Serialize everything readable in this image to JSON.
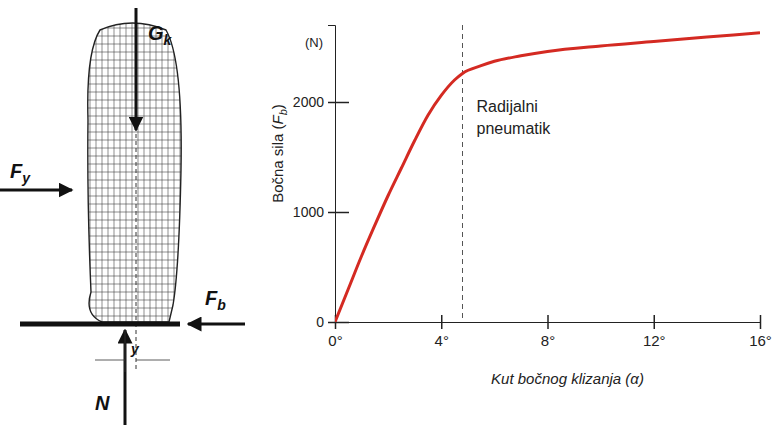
{
  "chart_data": {
    "type": "line",
    "ylabel": "Bočna sila (Fb)",
    "y_unit": "(N)",
    "xlabel": "Kut bočnog klizanja (α)",
    "annotation": "Radijalni pneumatik",
    "vline": 4.8,
    "x": [
      0,
      0.5,
      1,
      1.5,
      2,
      2.5,
      3,
      3.5,
      4,
      4.5,
      4.8,
      5.5,
      6,
      7,
      8,
      10,
      12,
      14,
      16
    ],
    "values": [
      0,
      300,
      600,
      880,
      1150,
      1400,
      1650,
      1880,
      2060,
      2200,
      2260,
      2330,
      2370,
      2420,
      2460,
      2510,
      2550,
      2590,
      2630
    ],
    "color": "#d42a22",
    "xlim": [
      0,
      16
    ],
    "ylim": [
      0,
      2700
    ],
    "xticks": [
      {
        "value": 0,
        "label": "0°"
      },
      {
        "value": 4,
        "label": "4°"
      },
      {
        "value": 8,
        "label": "8°"
      },
      {
        "value": 12,
        "label": "12°"
      },
      {
        "value": 16,
        "label": "16°"
      }
    ],
    "yticks": [
      0,
      1000,
      2000
    ],
    "grid": false
  },
  "diagram": {
    "labels": [
      {
        "main": "G",
        "sub": "k"
      },
      {
        "main": "F",
        "sub": "y"
      },
      {
        "main": "F",
        "sub": "b"
      },
      {
        "main": "N"
      },
      {
        "main": "y"
      }
    ]
  }
}
